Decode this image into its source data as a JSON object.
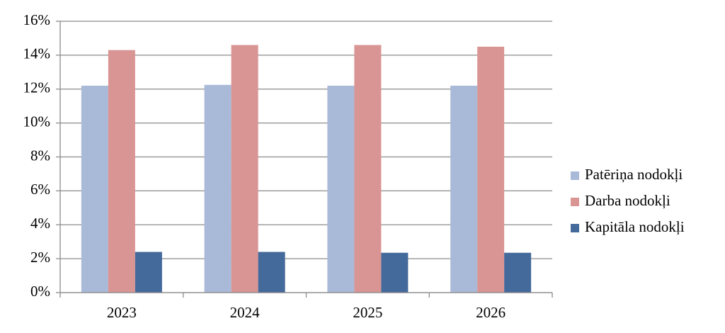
{
  "chart_data": {
    "type": "bar",
    "categories": [
      "2023",
      "2024",
      "2025",
      "2026"
    ],
    "series": [
      {
        "name": "Patēriņa nodokļi",
        "color": "#a9b9d8",
        "values": [
          12.2,
          12.25,
          12.2,
          12.2
        ]
      },
      {
        "name": "Darba nodokļi",
        "color": "#d99594",
        "values": [
          14.3,
          14.6,
          14.6,
          14.5
        ]
      },
      {
        "name": "Kapitāla nodokļi",
        "color": "#44699b",
        "values": [
          2.4,
          2.4,
          2.35,
          2.35
        ]
      }
    ],
    "ylim": [
      0,
      16
    ],
    "yticks": [
      {
        "value": 0,
        "label": "0%"
      },
      {
        "value": 2,
        "label": "2%"
      },
      {
        "value": 4,
        "label": "4%"
      },
      {
        "value": 6,
        "label": "6%"
      },
      {
        "value": 8,
        "label": "8%"
      },
      {
        "value": 10,
        "label": "10%"
      },
      {
        "value": 12,
        "label": "12%"
      },
      {
        "value": 14,
        "label": "14%"
      },
      {
        "value": 16,
        "label": "16%"
      }
    ],
    "grid": true,
    "legend": "right"
  }
}
